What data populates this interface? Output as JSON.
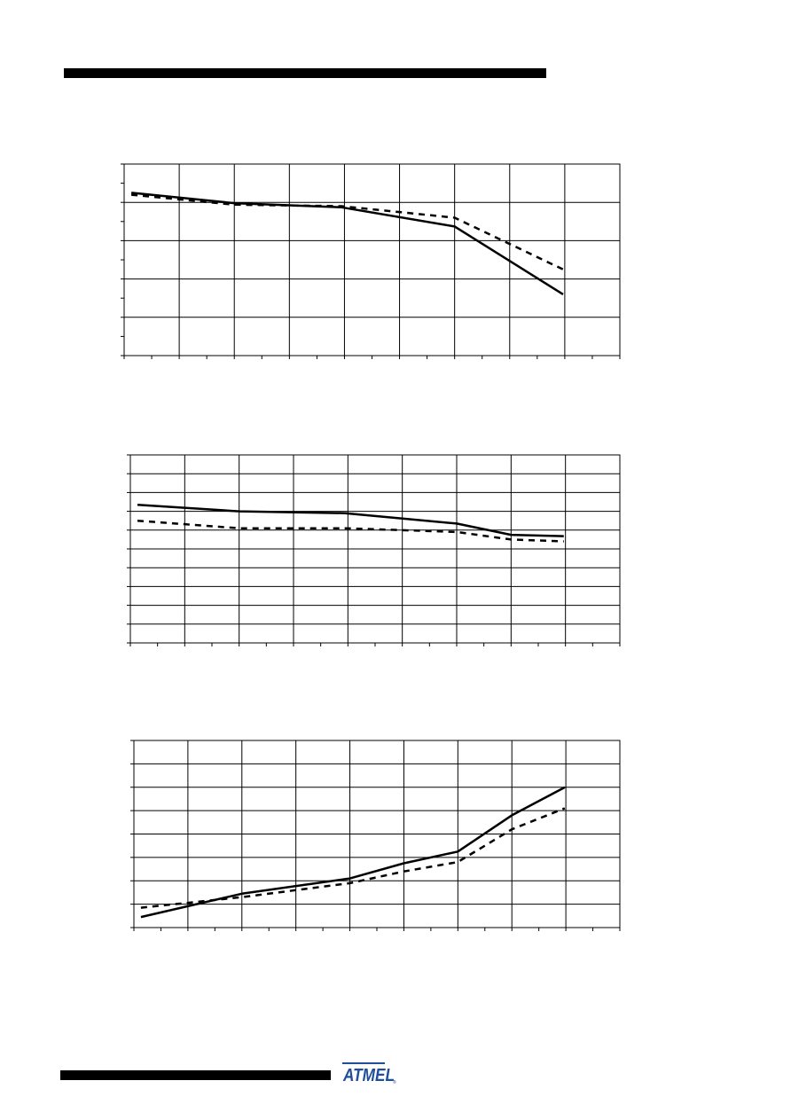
{
  "page": {
    "brand": "ATMEL"
  },
  "chart_data": [
    {
      "type": "line",
      "title": "",
      "xlabel": "",
      "ylabel": "",
      "x_divisions": 9,
      "y_divisions": 5,
      "minor_x_per_div": 2,
      "minor_y_per_div": 2,
      "xlim": [
        0,
        9
      ],
      "ylim": [
        0,
        5
      ],
      "series": [
        {
          "style": "solid",
          "x": [
            0.13,
            2,
            3.95,
            6,
            7.97
          ],
          "y": [
            4.25,
            3.98,
            3.87,
            3.37,
            1.6
          ]
        },
        {
          "style": "dashed",
          "x": [
            0.13,
            2,
            3.95,
            6,
            7.97
          ],
          "y": [
            4.2,
            3.94,
            3.9,
            3.6,
            2.25
          ]
        }
      ]
    },
    {
      "type": "line",
      "title": "",
      "xlabel": "",
      "ylabel": "",
      "x_divisions": 9,
      "y_divisions": 10,
      "minor_x_per_div": 2,
      "minor_y_per_div": 1,
      "xlim": [
        0,
        9
      ],
      "ylim": [
        0,
        10
      ],
      "series": [
        {
          "style": "solid",
          "x": [
            0.13,
            2,
            3.95,
            6,
            7,
            7.97
          ],
          "y": [
            7.35,
            7.0,
            6.9,
            6.35,
            5.75,
            5.68
          ]
        },
        {
          "style": "dashed",
          "x": [
            0.13,
            2,
            3.95,
            6,
            7,
            7.97
          ],
          "y": [
            6.5,
            6.1,
            6.1,
            5.9,
            5.5,
            5.4
          ]
        }
      ]
    },
    {
      "type": "line",
      "title": "",
      "xlabel": "",
      "ylabel": "",
      "x_divisions": 9,
      "y_divisions": 8,
      "minor_x_per_div": 2,
      "minor_y_per_div": 1,
      "xlim": [
        0,
        9
      ],
      "ylim": [
        0,
        8
      ],
      "series": [
        {
          "style": "solid",
          "x": [
            0.13,
            2,
            4,
            5,
            6,
            7,
            7.98
          ],
          "y": [
            0.45,
            1.45,
            2.1,
            2.75,
            3.25,
            4.8,
            6.0
          ]
        },
        {
          "style": "dashed",
          "x": [
            0.13,
            2,
            4,
            5,
            6,
            7,
            7.98
          ],
          "y": [
            0.85,
            1.3,
            1.9,
            2.4,
            2.8,
            4.2,
            5.1
          ]
        }
      ]
    }
  ]
}
